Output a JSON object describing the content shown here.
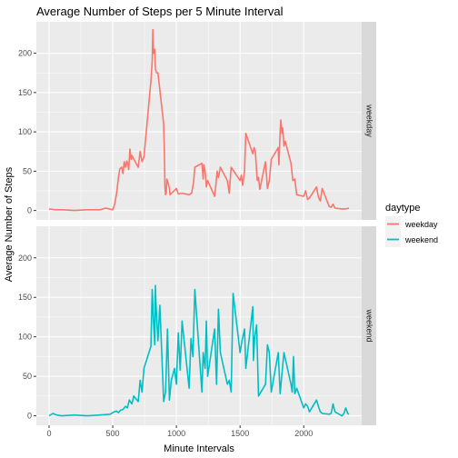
{
  "chart_data": {
    "type": "line",
    "title": "Average Number of Steps per 5 Minute Interval",
    "xlabel": "Minute Intervals",
    "ylabel": "Average Number of Steps",
    "xlim": [
      -100,
      2455
    ],
    "ylim": [
      -12,
      240
    ],
    "x_ticks": [
      0,
      500,
      1000,
      1500,
      2000
    ],
    "y_ticks": [
      0,
      50,
      100,
      150,
      200
    ],
    "grid": true,
    "legend": {
      "title": "daytype",
      "placement": "right"
    },
    "panels": [
      {
        "label": "weekday",
        "color": "#F8766D",
        "x": [
          0,
          50,
          100,
          200,
          300,
          400,
          445,
          500,
          515,
          530,
          545,
          555,
          570,
          580,
          590,
          600,
          610,
          620,
          625,
          635,
          645,
          650,
          700,
          715,
          730,
          745,
          800,
          810,
          815,
          820,
          830,
          835,
          845,
          855,
          900,
          905,
          910,
          915,
          920,
          925,
          935,
          945,
          950,
          1000,
          1015,
          1045,
          1100,
          1120,
          1135,
          1145,
          1200,
          1210,
          1215,
          1225,
          1235,
          1245,
          1300,
          1310,
          1320,
          1330,
          1345,
          1400,
          1415,
          1430,
          1500,
          1510,
          1520,
          1535,
          1545,
          1600,
          1610,
          1620,
          1635,
          1645,
          1655,
          1700,
          1715,
          1730,
          1745,
          1800,
          1805,
          1815,
          1820,
          1830,
          1835,
          1845,
          1855,
          1900,
          1915,
          1930,
          1945,
          2000,
          2015,
          2030,
          2045,
          2100,
          2115,
          2130,
          2145,
          2200,
          2215,
          2230,
          2245,
          2300,
          2330,
          2355
        ],
        "values": [
          2,
          1,
          1,
          0,
          1,
          1,
          3,
          1,
          8,
          22,
          42,
          53,
          55,
          47,
          62,
          55,
          63,
          58,
          52,
          78,
          65,
          70,
          55,
          75,
          62,
          68,
          165,
          190,
          230,
          200,
          205,
          180,
          175,
          175,
          110,
          80,
          30,
          20,
          22,
          40,
          35,
          28,
          20,
          28,
          21,
          22,
          20,
          22,
          36,
          55,
          60,
          40,
          58,
          50,
          30,
          38,
          18,
          33,
          50,
          42,
          55,
          38,
          22,
          55,
          38,
          45,
          32,
          50,
          98,
          72,
          80,
          75,
          38,
          42,
          27,
          62,
          28,
          38,
          65,
          80,
          58,
          100,
          115,
          98,
          105,
          82,
          88,
          60,
          38,
          40,
          20,
          18,
          25,
          14,
          16,
          30,
          17,
          12,
          28,
          5,
          4,
          8,
          3,
          2,
          2,
          3
        ]
      },
      {
        "label": "weekend",
        "color": "#00BFC4",
        "x": [
          0,
          30,
          60,
          100,
          200,
          300,
          400,
          480,
          510,
          530,
          545,
          560,
          580,
          600,
          615,
          630,
          650,
          665,
          680,
          700,
          715,
          730,
          745,
          800,
          810,
          820,
          830,
          835,
          840,
          855,
          870,
          885,
          900,
          915,
          930,
          945,
          960,
          985,
          1000,
          1015,
          1030,
          1045,
          1100,
          1115,
          1130,
          1145,
          1200,
          1210,
          1225,
          1235,
          1245,
          1300,
          1315,
          1330,
          1345,
          1400,
          1415,
          1430,
          1445,
          1500,
          1515,
          1535,
          1545,
          1600,
          1605,
          1615,
          1630,
          1645,
          1700,
          1715,
          1730,
          1745,
          1800,
          1815,
          1830,
          1845,
          1900,
          1910,
          1920,
          1930,
          1945,
          2000,
          2015,
          2030,
          2045,
          2100,
          2115,
          2130,
          2145,
          2200,
          2215,
          2230,
          2245,
          2300,
          2315,
          2330,
          2345,
          2355
        ],
        "values": [
          0,
          3,
          1,
          0,
          1,
          0,
          1,
          2,
          5,
          6,
          4,
          7,
          8,
          12,
          10,
          20,
          15,
          25,
          22,
          18,
          45,
          30,
          60,
          88,
          160,
          120,
          90,
          165,
          140,
          95,
          140,
          80,
          18,
          30,
          110,
          20,
          45,
          60,
          40,
          105,
          58,
          120,
          35,
          98,
          75,
          160,
          30,
          80,
          60,
          120,
          50,
          110,
          40,
          135,
          80,
          40,
          45,
          30,
          155,
          80,
          95,
          110,
          60,
          138,
          70,
          100,
          115,
          25,
          40,
          90,
          80,
          30,
          80,
          28,
          55,
          80,
          40,
          30,
          75,
          28,
          35,
          10,
          15,
          12,
          5,
          20,
          12,
          5,
          3,
          2,
          3,
          15,
          5,
          0,
          3,
          10,
          3,
          2
        ]
      }
    ]
  }
}
